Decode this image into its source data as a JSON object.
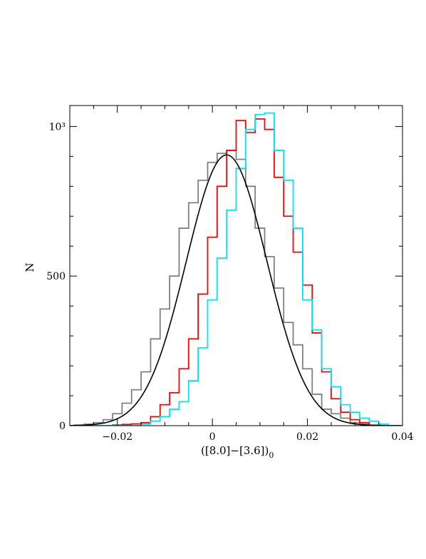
{
  "chart_data": {
    "type": "histogram",
    "title": "",
    "xlabel": "([8.0]−[3.6])",
    "xlabel_subscript": "0",
    "ylabel": "N",
    "xlim": [
      -0.03,
      0.04
    ],
    "ylim": [
      0,
      1070
    ],
    "grid": false,
    "legend": "none",
    "x_ticks": [
      {
        "value": -0.02,
        "label": "−0.02"
      },
      {
        "value": 0,
        "label": "0"
      },
      {
        "value": 0.02,
        "label": "0.02"
      },
      {
        "value": 0.04,
        "label": "0.04"
      }
    ],
    "y_ticks": [
      {
        "value": 0,
        "label": "0"
      },
      {
        "value": 500,
        "label": "500"
      },
      {
        "value": 1000,
        "label": "10³"
      }
    ],
    "bin_edges": [
      -0.033,
      -0.031,
      -0.029,
      -0.027,
      -0.025,
      -0.023,
      -0.021,
      -0.019,
      -0.017,
      -0.015,
      -0.013,
      -0.011,
      -0.009,
      -0.007,
      -0.005,
      -0.003,
      -0.001,
      0.001,
      0.003,
      0.005,
      0.007,
      0.009,
      0.011,
      0.013,
      0.015,
      0.017,
      0.019,
      0.021,
      0.023,
      0.025,
      0.027,
      0.029,
      0.031,
      0.033,
      0.035,
      0.037,
      0.039
    ],
    "series": [
      {
        "color": "#808080",
        "style": "step",
        "counts": [
          0,
          0,
          2,
          5,
          10,
          20,
          40,
          75,
          120,
          180,
          290,
          390,
          500,
          660,
          745,
          820,
          880,
          910,
          920,
          890,
          800,
          660,
          565,
          460,
          345,
          270,
          190,
          105,
          55,
          40,
          25,
          10,
          5,
          2,
          0,
          0
        ]
      },
      {
        "color": "#ff0000",
        "style": "step",
        "counts": [
          0,
          0,
          0,
          0,
          0,
          0,
          2,
          4,
          6,
          10,
          30,
          70,
          110,
          190,
          290,
          440,
          630,
          800,
          920,
          1020,
          980,
          1025,
          990,
          830,
          700,
          580,
          470,
          310,
          180,
          90,
          45,
          20,
          10,
          0,
          0,
          0
        ]
      },
      {
        "color": "#00e5ee",
        "style": "step",
        "counts": [
          0,
          0,
          0,
          0,
          0,
          0,
          0,
          0,
          0,
          5,
          15,
          30,
          55,
          80,
          150,
          260,
          420,
          560,
          720,
          860,
          990,
          1040,
          1045,
          920,
          820,
          660,
          420,
          320,
          190,
          130,
          70,
          45,
          25,
          15,
          5,
          0
        ]
      },
      {
        "color": "#000000",
        "style": "curve",
        "model": "gaussian",
        "mean": 0.003,
        "sigma": 0.0085,
        "amplitude": 905
      }
    ]
  }
}
